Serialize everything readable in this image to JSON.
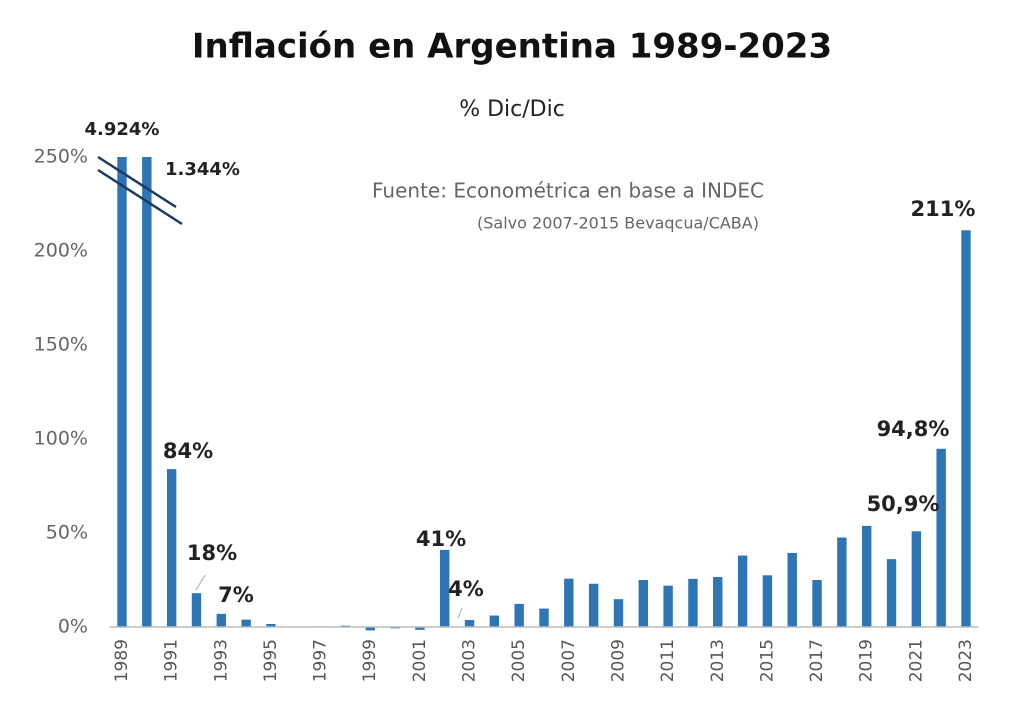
{
  "chart_data": {
    "type": "bar",
    "title": "Inflación en Argentina 1989-2023",
    "subtitle": "% Dic/Dic",
    "source": "Fuente: Econométrica en base a INDEC",
    "source_note": "(Salvo 2007-2015 Bevaqcua/CABA)",
    "categories": [
      "1989",
      null,
      "1991",
      null,
      "1993",
      null,
      "1995",
      null,
      "1997",
      null,
      "1999",
      null,
      "2001",
      null,
      "2003",
      null,
      "2005",
      null,
      "2007",
      null,
      "2009",
      null,
      "2011",
      null,
      "2013",
      null,
      "2015",
      null,
      "2017",
      null,
      "2019",
      null,
      "2021",
      null,
      "2023"
    ],
    "values": [
      4924,
      1344,
      84,
      18,
      7,
      3.9,
      1.6,
      0.1,
      0.3,
      0.7,
      -1.8,
      -0.7,
      -1.5,
      41,
      3.7,
      6.1,
      12.3,
      9.8,
      25.7,
      23,
      14.8,
      25,
      22,
      25.6,
      26.6,
      38,
      27.5,
      39.4,
      25,
      47.6,
      53.8,
      36.1,
      50.9,
      94.8,
      211
    ],
    "value_labels": [
      "4.924%",
      "1.344%",
      "84%",
      "18%",
      "7%",
      null,
      null,
      null,
      null,
      null,
      null,
      null,
      null,
      "41%",
      "4%",
      null,
      null,
      null,
      null,
      null,
      null,
      null,
      null,
      null,
      null,
      null,
      null,
      null,
      null,
      null,
      null,
      null,
      "50,9%",
      "94,8%",
      "211%"
    ],
    "color": "#2e75b6",
    "ylim": [
      0,
      250
    ],
    "yticks": [
      {
        "value": 0,
        "label": "0%"
      },
      {
        "value": 50,
        "label": "50%"
      },
      {
        "value": 100,
        "label": "100%"
      },
      {
        "value": 150,
        "label": "150%"
      },
      {
        "value": 200,
        "label": "200%"
      },
      {
        "value": 250,
        "label": "250%"
      }
    ],
    "grid": false
  }
}
